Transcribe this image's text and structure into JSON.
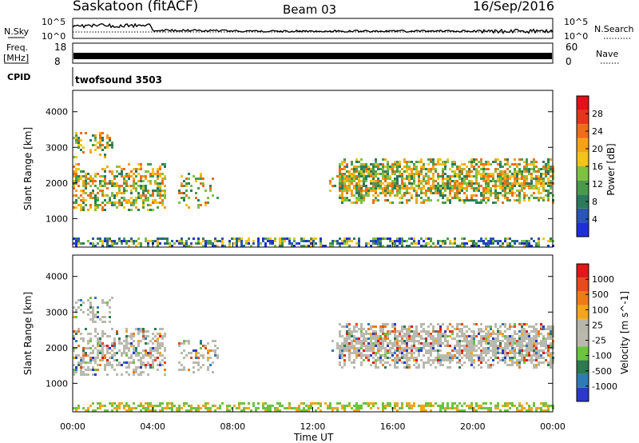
{
  "header": {
    "station": "Saskatoon (fitACF)",
    "beam": "Beam 03",
    "date": "16/Sep/2016"
  },
  "panels": {
    "nsky": {
      "left_label": "N.Sky",
      "right_label": "N.Search",
      "left_ticks": [
        "10^5",
        "10^0"
      ],
      "right_ticks": [
        "10^5",
        "10^0"
      ]
    },
    "freq": {
      "left_label_1": "Freq.",
      "left_label_2": "[MHz]",
      "left_ticks": [
        "18",
        "8"
      ],
      "right_label": "Nave",
      "right_ticks": [
        "60",
        "0"
      ]
    },
    "cpid": {
      "label": "CPID",
      "program": "twofsound 3503"
    }
  },
  "colors": {
    "power": [
      "#1f2fd8",
      "#2a55b4",
      "#2b7a5c",
      "#4a9a4c",
      "#7fc241",
      "#f2c41a",
      "#f5a21b",
      "#ee6d1a",
      "#e4361c",
      "#e3101a"
    ],
    "velocity": [
      "#2c38c8",
      "#2f7ab5",
      "#2c7a4e",
      "#6cc33f",
      "#b9b9ae",
      "#b7b6ab",
      "#f3a51b",
      "#ee7b19",
      "#e54b1c",
      "#e01818"
    ]
  },
  "chart_data": [
    {
      "type": "heatmap",
      "name": "power",
      "xlabel": "",
      "ylabel": "Slant Range [km]",
      "ylim": [
        200,
        4600
      ],
      "xlim": [
        0,
        24
      ],
      "y_ticks": [
        "1000",
        "2000",
        "3000",
        "4000"
      ],
      "x_ticks": [
        "00:00",
        "04:00",
        "08:00",
        "12:00",
        "16:00",
        "20:00",
        "00:00"
      ],
      "colorbar": {
        "label": "Power [dB]",
        "range": [
          0,
          32
        ],
        "tick_values": [
          4,
          8,
          12,
          16,
          20,
          24,
          28
        ],
        "ticks": [
          "4",
          "8",
          "12",
          "16",
          "20",
          "24",
          "28"
        ]
      }
    },
    {
      "type": "heatmap",
      "name": "velocity",
      "xlabel": "Time UT",
      "ylabel": "Slant Range [km]",
      "ylim": [
        200,
        4600
      ],
      "xlim": [
        0,
        24
      ],
      "y_ticks": [
        "1000",
        "2000",
        "3000",
        "4000"
      ],
      "x_ticks": [
        "00:00",
        "04:00",
        "08:00",
        "12:00",
        "16:00",
        "20:00",
        "00:00"
      ],
      "colorbar": {
        "label": "Velocity [m s^-1]",
        "ticks": [
          "1000",
          "500",
          "100",
          "25",
          "-25",
          "-100",
          "-500",
          "-1000"
        ]
      }
    }
  ]
}
